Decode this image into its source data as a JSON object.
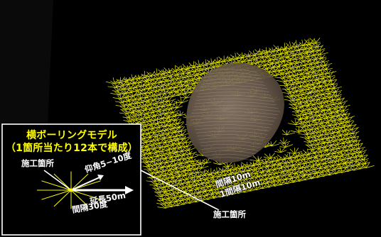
{
  "legend": {
    "title_line1": "横ボーリングモデル",
    "title_line2": "（1箇所当たり12本で構成）",
    "label_site": "施工箇所",
    "label_angle": "仰角5−10度",
    "label_length": "延長50m",
    "label_spacing": "間隔30度"
  },
  "model": {
    "label_interval": "間隔10m",
    "label_interval_1": "1間隔10m",
    "label_site": "施工箇所"
  },
  "colors": {
    "background": "#000000",
    "borehole": "#ffff00",
    "terrain": "#6e5e50",
    "frame": "#ffffff"
  }
}
